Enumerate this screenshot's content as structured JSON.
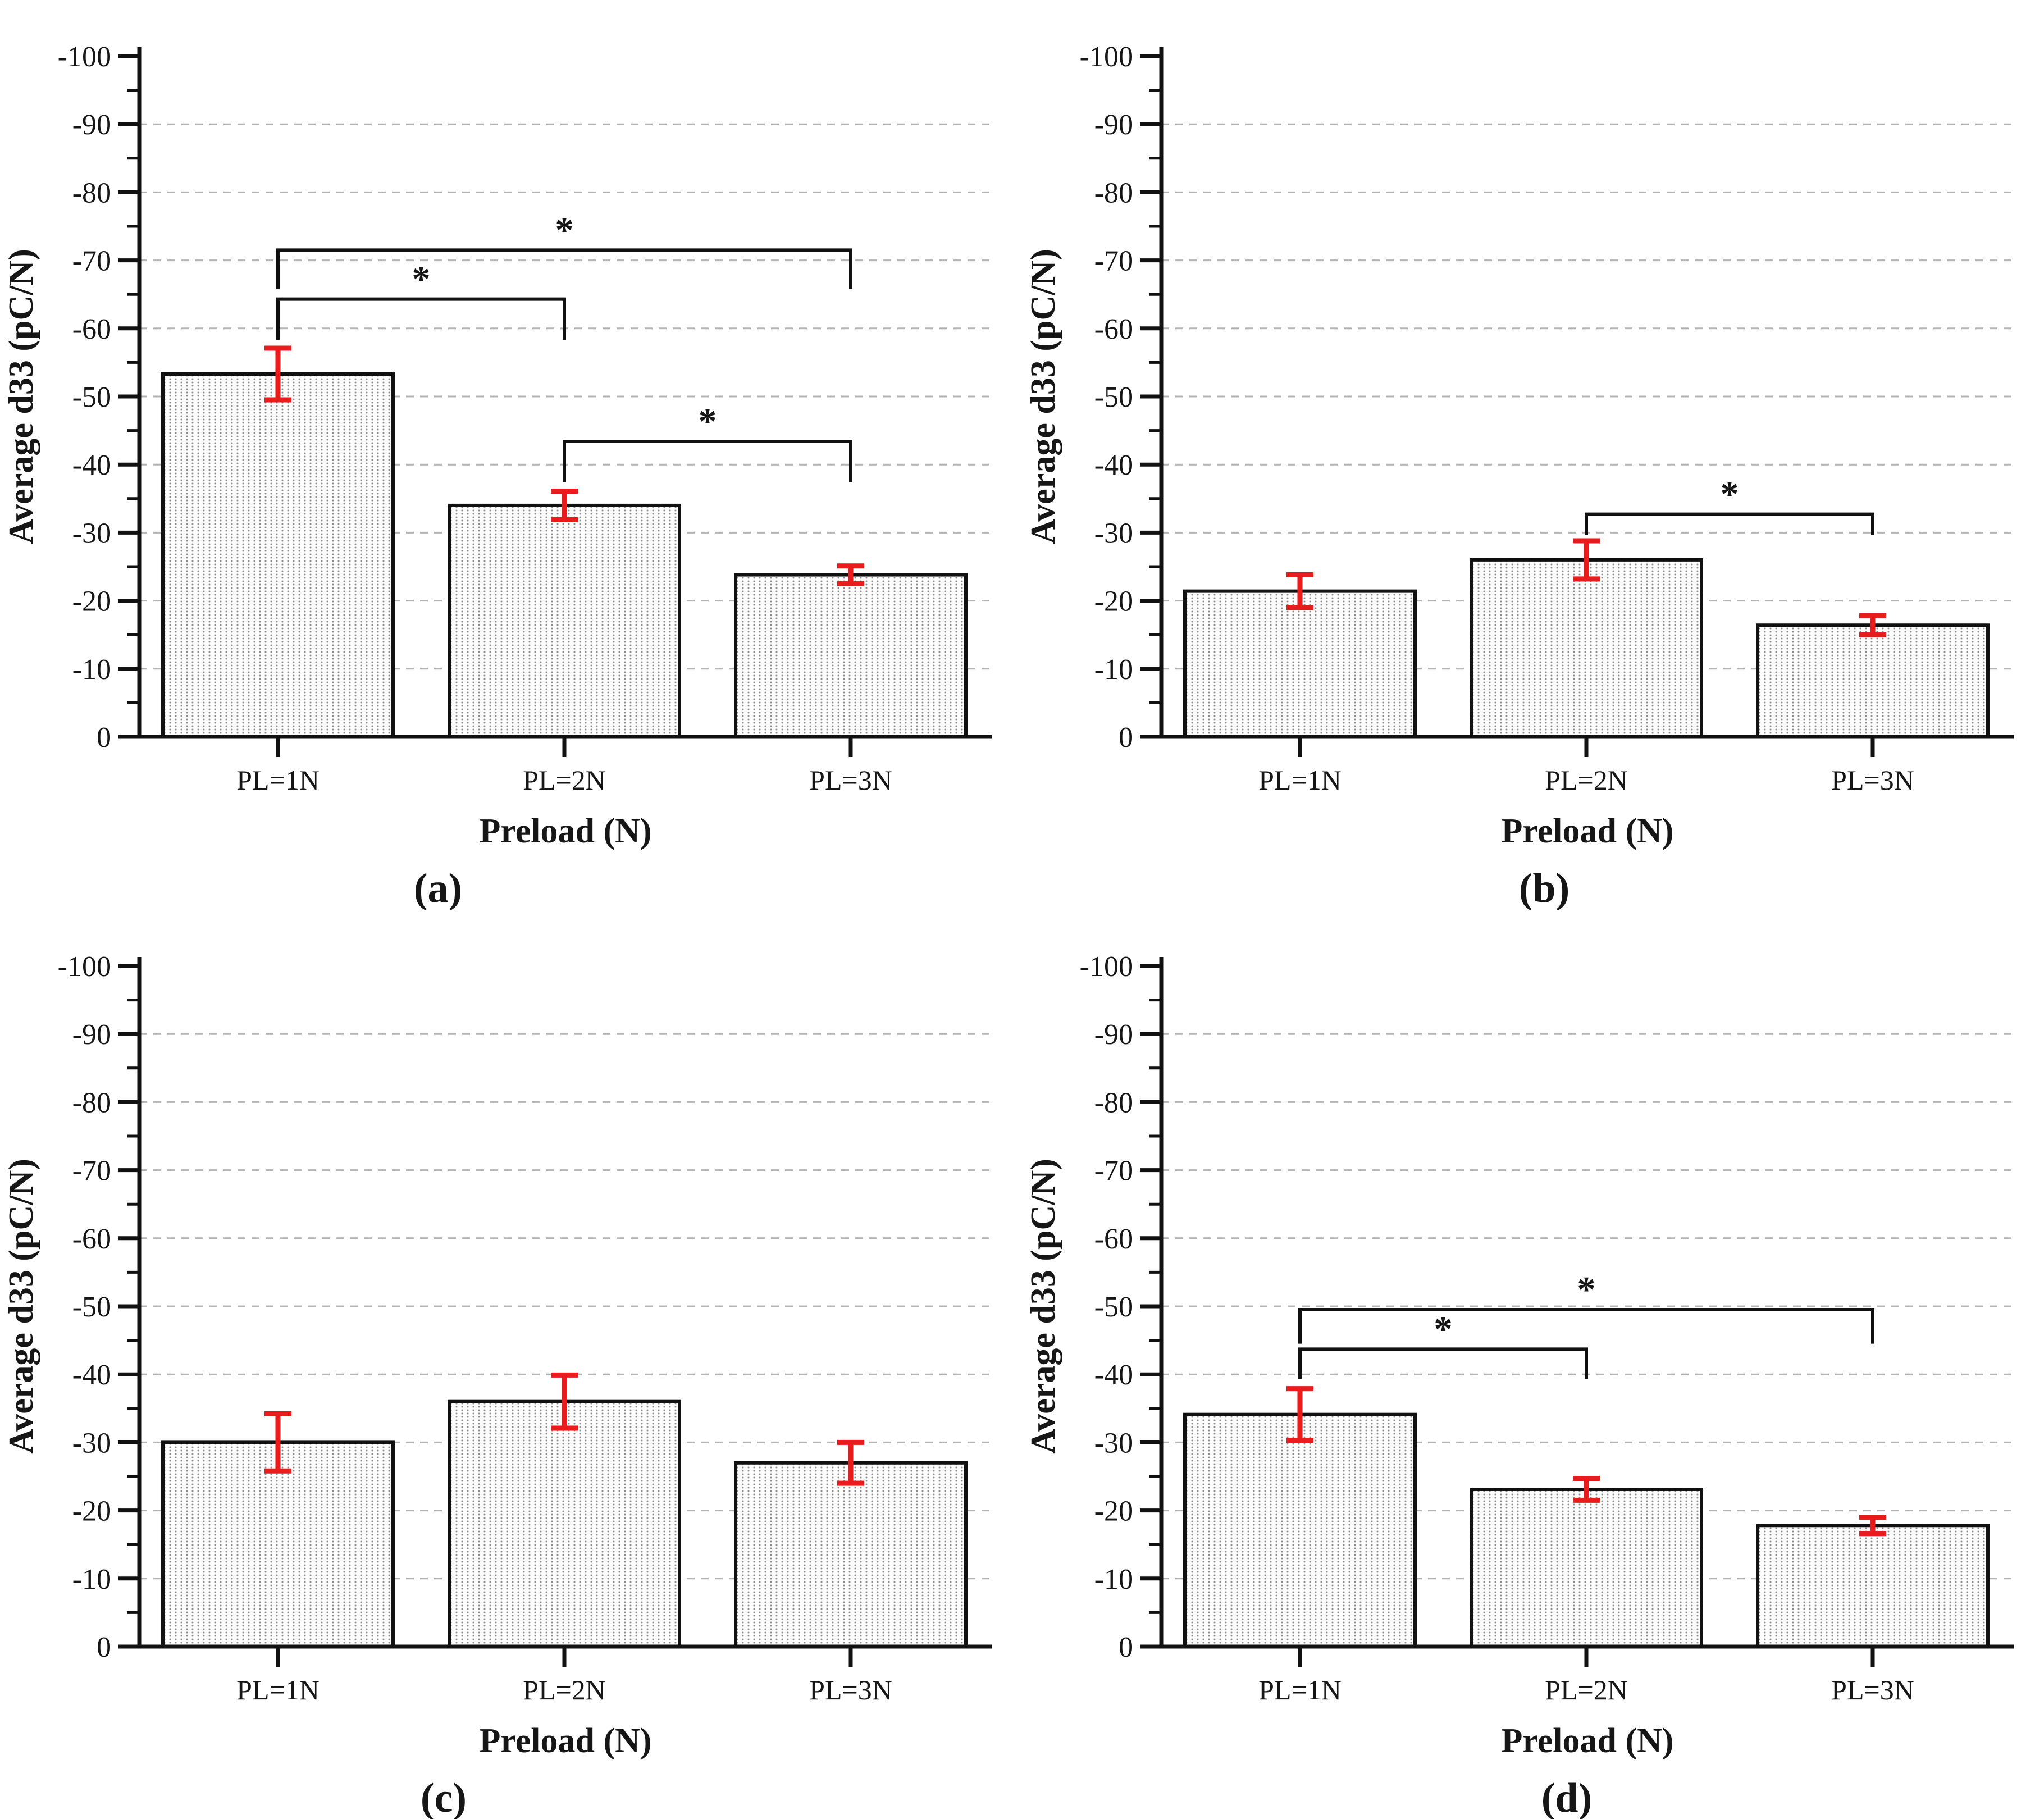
{
  "figure": {
    "description": "Four-panel bar chart figure comparing average d33 (pC/N) across preload levels",
    "panel_captions": [
      "(a)",
      "(b)",
      "(c)",
      "(d)"
    ]
  },
  "style": {
    "axis_color": "#111111",
    "text_color": "#161616",
    "grid_color": "#b4b4b4",
    "error_color": "#e81c1c",
    "bar_background": "#fcfcfc",
    "bar_dot_color": "#8a8a8a",
    "significance_marker": "*"
  },
  "chart_data": [
    {
      "id": "a",
      "type": "bar",
      "caption": "(a)",
      "xlabel": "Preload (N)",
      "ylabel": "Average d33 (pC/N)",
      "categories": [
        "PL=1N",
        "PL=2N",
        "PL=3N"
      ],
      "values": [
        -53.3,
        -34.0,
        -23.8
      ],
      "errors": [
        3.8,
        2.1,
        1.3
      ],
      "ylim": [
        0,
        -100
      ],
      "yticks": [
        0,
        -10,
        -20,
        -30,
        -40,
        -50,
        -60,
        -70,
        -80,
        -90,
        -100
      ],
      "grid": "dashed-horizontal",
      "legend": "none",
      "significance_brackets": [
        {
          "from": 0,
          "to": 2,
          "level": -71.5,
          "arm_end": -65.8,
          "label": "*"
        },
        {
          "from": 0,
          "to": 1,
          "level": -64.3,
          "arm_end": -58.3,
          "label": "*"
        },
        {
          "from": 1,
          "to": 2,
          "level": -43.4,
          "arm_end": -37.4,
          "label": "*"
        }
      ]
    },
    {
      "id": "b",
      "type": "bar",
      "caption": "(b)",
      "xlabel": "Preload (N)",
      "ylabel": "Average d33 (pC/N)",
      "categories": [
        "PL=1N",
        "PL=2N",
        "PL=3N"
      ],
      "values": [
        -21.4,
        -26.0,
        -16.4
      ],
      "errors": [
        2.4,
        2.8,
        1.4
      ],
      "ylim": [
        0,
        -100
      ],
      "yticks": [
        0,
        -10,
        -20,
        -30,
        -40,
        -50,
        -60,
        -70,
        -80,
        -90,
        -100
      ],
      "grid": "dashed-horizontal",
      "legend": "none",
      "significance_brackets": [
        {
          "from": 1,
          "to": 2,
          "level": -32.7,
          "arm_end": -29.7,
          "label": "*"
        }
      ]
    },
    {
      "id": "c",
      "type": "bar",
      "caption": "(c)",
      "xlabel": "Preload (N)",
      "ylabel": "Average d33 (pC/N)",
      "categories": [
        "PL=1N",
        "PL=2N",
        "PL=3N"
      ],
      "values": [
        -30.0,
        -36.0,
        -27.0
      ],
      "errors": [
        4.2,
        3.9,
        3.0
      ],
      "ylim": [
        0,
        -100
      ],
      "yticks": [
        0,
        -10,
        -20,
        -30,
        -40,
        -50,
        -60,
        -70,
        -80,
        -90,
        -100
      ],
      "grid": "dashed-horizontal",
      "legend": "none",
      "significance_brackets": []
    },
    {
      "id": "d",
      "type": "bar",
      "caption": "(d)",
      "xlabel": "Preload (N)",
      "ylabel": "Average d33 (pC/N)",
      "categories": [
        "PL=1N",
        "PL=2N",
        "PL=3N"
      ],
      "values": [
        -34.1,
        -23.1,
        -17.8
      ],
      "errors": [
        3.8,
        1.6,
        1.2
      ],
      "ylim": [
        0,
        -100
      ],
      "yticks": [
        0,
        -10,
        -20,
        -30,
        -40,
        -50,
        -60,
        -70,
        -80,
        -90,
        -100
      ],
      "grid": "dashed-horizontal",
      "legend": "none",
      "significance_brackets": [
        {
          "from": 0,
          "to": 2,
          "level": -49.5,
          "arm_end": -44.5,
          "label": "*"
        },
        {
          "from": 0,
          "to": 1,
          "level": -43.7,
          "arm_end": -39.3,
          "label": "*"
        }
      ]
    }
  ]
}
